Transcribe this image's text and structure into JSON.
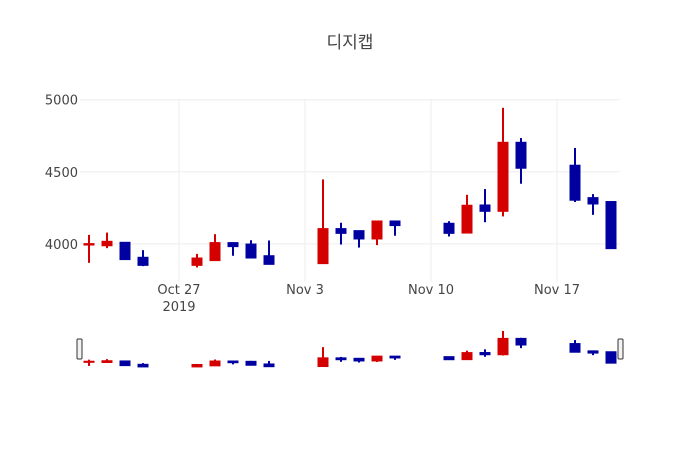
{
  "chart_data": {
    "type": "candlestick",
    "title": "디지캡",
    "xlabel": "",
    "ylabel": "",
    "ylim": [
      3735,
      5005
    ],
    "xlim": [
      "2019-10-21T12:00",
      "2019-11-20T12:00"
    ],
    "grid": true,
    "y_ticks": [
      {
        "value": 4000,
        "label": "4000"
      },
      {
        "value": 4500,
        "label": "4500"
      },
      {
        "value": 5000,
        "label": "5000"
      }
    ],
    "x_ticks": [
      {
        "date": "2019-10-27",
        "label": "Oct 27",
        "sublabel": "2019"
      },
      {
        "date": "2019-11-03",
        "label": "Nov 3"
      },
      {
        "date": "2019-11-10",
        "label": "Nov 10"
      },
      {
        "date": "2019-11-17",
        "label": "Nov 17"
      }
    ],
    "increasing_color": "#d40000",
    "decreasing_color": "#0000a0",
    "rangeslider": true,
    "candles": [
      {
        "date": "2019-10-22",
        "open": 3995,
        "high": 4062,
        "low": 3868,
        "close": 3998
      },
      {
        "date": "2019-10-23",
        "open": 3990,
        "high": 4078,
        "low": 3970,
        "close": 4014
      },
      {
        "date": "2019-10-24",
        "open": 4007,
        "high": 4010,
        "low": 3890,
        "close": 3894
      },
      {
        "date": "2019-10-25",
        "open": 3903,
        "high": 3956,
        "low": 3845,
        "close": 3854
      },
      {
        "date": "2019-10-28",
        "open": 3854,
        "high": 3930,
        "low": 3836,
        "close": 3898
      },
      {
        "date": "2019-10-29",
        "open": 3887,
        "high": 4067,
        "low": 3887,
        "close": 4005
      },
      {
        "date": "2019-10-30",
        "open": 4005,
        "high": 4005,
        "low": 3917,
        "close": 3984
      },
      {
        "date": "2019-10-31",
        "open": 3995,
        "high": 4025,
        "low": 3903,
        "close": 3905
      },
      {
        "date": "2019-11-01",
        "open": 3914,
        "high": 4023,
        "low": 3856,
        "close": 3861
      },
      {
        "date": "2019-11-04",
        "open": 3866,
        "high": 4447,
        "low": 3866,
        "close": 4102
      },
      {
        "date": "2019-11-05",
        "open": 4102,
        "high": 4146,
        "low": 3995,
        "close": 4076
      },
      {
        "date": "2019-11-06",
        "open": 4088,
        "high": 4088,
        "low": 3974,
        "close": 4037
      },
      {
        "date": "2019-11-07",
        "open": 4037,
        "high": 4155,
        "low": 3991,
        "close": 4155
      },
      {
        "date": "2019-11-08",
        "open": 4155,
        "high": 4155,
        "low": 4056,
        "close": 4130
      },
      {
        "date": "2019-11-11",
        "open": 4139,
        "high": 4157,
        "low": 4051,
        "close": 4076
      },
      {
        "date": "2019-11-12",
        "open": 4078,
        "high": 4340,
        "low": 4078,
        "close": 4264
      },
      {
        "date": "2019-11-13",
        "open": 4266,
        "high": 4380,
        "low": 4150,
        "close": 4229
      },
      {
        "date": "2019-11-14",
        "open": 4229,
        "high": 4944,
        "low": 4190,
        "close": 4701
      },
      {
        "date": "2019-11-15",
        "open": 4701,
        "high": 4734,
        "low": 4417,
        "close": 4528
      },
      {
        "date": "2019-11-18",
        "open": 4542,
        "high": 4665,
        "low": 4290,
        "close": 4306
      },
      {
        "date": "2019-11-19",
        "open": 4317,
        "high": 4345,
        "low": 4201,
        "close": 4280
      },
      {
        "date": "2019-11-20",
        "open": 4290,
        "high": 4290,
        "low": 3965,
        "close": 3970
      }
    ]
  }
}
